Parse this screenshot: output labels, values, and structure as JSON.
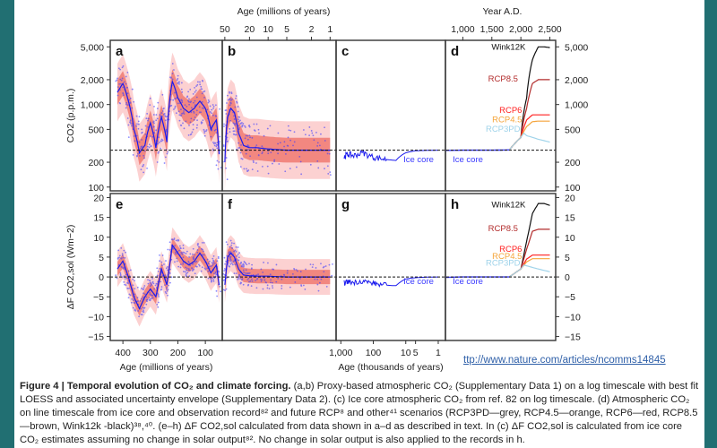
{
  "figure": {
    "top_axis_left_title": "Age (millions of years)",
    "top_axis_left_ticks": [
      "50",
      "20",
      "10",
      "5",
      "2",
      "1"
    ],
    "top_axis_right_title": "Year A.D.",
    "top_axis_right_ticks": [
      "1,000",
      "1,500",
      "2,000",
      "2,500"
    ],
    "bottom_axis_left_title": "Age (millions of years)",
    "bottom_axis_left_ticks": [
      "400",
      "300",
      "200",
      "100"
    ],
    "bottom_axis_mid_title": "Age (thousands of years)",
    "bottom_axis_mid_ticks": [
      "1,000",
      "100",
      "10",
      "5",
      "1"
    ],
    "top_ylabel": "CO2 (p.p.m.)",
    "bottom_ylabel": "ΔF CO2,sol (Wm−2)",
    "panel_labels": [
      "a",
      "b",
      "c",
      "d",
      "e",
      "f",
      "g",
      "h"
    ],
    "ice_core_label": "Ice core",
    "colors": {
      "proxy_points": "#3b3bff",
      "loess": "#1a1aee",
      "envelope_outer": "#fcc9c9",
      "envelope_inner": "#f07a72",
      "rcp3pd": "#9fd3ea",
      "rcp45": "#f5a43a",
      "rcp6": "#ff2020",
      "rcp85": "#b22b2b",
      "wink12k": "#111111"
    }
  },
  "chart_data": [
    {
      "type": "line",
      "panel": "a-d",
      "title": "Atmospheric CO2",
      "ylabel": "CO2 (p.p.m.)",
      "yscale": "log",
      "ylim": [
        90,
        6000
      ],
      "yticks": [
        100,
        200,
        500,
        1000,
        2000,
        5000
      ],
      "ytick_labels": [
        "100",
        "200",
        "500",
        "1,000",
        "2,000",
        "5,000"
      ],
      "reference_line": 280,
      "panels": {
        "a": {
          "xlabel": "Age (millions of years)",
          "x": [
            420,
            400,
            380,
            360,
            340,
            320,
            300,
            280,
            260,
            240,
            220,
            200,
            180,
            160,
            140,
            120,
            100,
            80,
            60,
            50
          ],
          "loess": [
            1400,
            1800,
            1100,
            500,
            260,
            320,
            600,
            300,
            700,
            350,
            1900,
            1200,
            900,
            800,
            900,
            1100,
            900,
            500,
            650,
            250
          ]
        },
        "b": {
          "xlabel": "Age (millions of years)",
          "x": [
            50,
            45,
            40,
            35,
            30,
            25,
            20,
            15,
            10,
            5,
            2,
            1
          ],
          "loess": [
            200,
            700,
            900,
            800,
            450,
            320,
            300,
            300,
            290,
            280,
            280,
            280
          ]
        },
        "c": {
          "xlabel": "Age (thousands of years)",
          "label": "Ice core",
          "x": [
            800,
            600,
            400,
            200,
            100,
            50,
            20,
            10,
            5,
            1
          ],
          "loess": [
            230,
            250,
            240,
            260,
            230,
            220,
            210,
            260,
            275,
            280
          ]
        },
        "d": {
          "xlabel": "Year A.D.",
          "xlim": [
            700,
            2600
          ],
          "series": [
            {
              "name": "Wink12K",
              "x": [
                1800,
                2000,
                2100,
                2200,
                2300,
                2400,
                2500
              ],
              "values": [
                280,
                400,
                1200,
                3500,
                5000,
                5000,
                4900
              ]
            },
            {
              "name": "RCP8.5",
              "x": [
                1800,
                2000,
                2100,
                2200,
                2300,
                2500
              ],
              "values": [
                280,
                400,
                900,
                1800,
                2000,
                2000
              ]
            },
            {
              "name": "RCP6",
              "x": [
                1800,
                2000,
                2100,
                2200,
                2300,
                2500
              ],
              "values": [
                280,
                400,
                650,
                750,
                750,
                750
              ]
            },
            {
              "name": "RCP4.5",
              "x": [
                1800,
                2000,
                2100,
                2200,
                2300,
                2500
              ],
              "values": [
                280,
                400,
                540,
                620,
                630,
                630
              ]
            },
            {
              "name": "RCP3PD",
              "x": [
                1800,
                2000,
                2050,
                2100,
                2300,
                2500
              ],
              "values": [
                280,
                400,
                450,
                420,
                380,
                350
              ]
            },
            {
              "name": "Ice core",
              "x": [
                700,
                1000,
                1500,
                1800
              ],
              "values": [
                278,
                280,
                280,
                282
              ]
            }
          ]
        }
      }
    },
    {
      "type": "line",
      "panel": "e-h",
      "title": "Climate forcing",
      "ylabel": "ΔF CO2,sol (Wm−2)",
      "ylim": [
        -16,
        21
      ],
      "yticks": [
        -15,
        -10,
        -5,
        0,
        5,
        10,
        15,
        20
      ],
      "ytick_labels": [
        "−15",
        "−10",
        "−5",
        "0",
        "5",
        "10",
        "15",
        "20"
      ],
      "reference_line": 0,
      "panels": {
        "e": {
          "xlabel": "Age (millions of years)",
          "x": [
            420,
            400,
            380,
            360,
            340,
            320,
            300,
            280,
            260,
            240,
            220,
            200,
            180,
            160,
            140,
            120,
            100,
            80,
            60,
            50
          ],
          "loess": [
            2,
            4,
            0,
            -5,
            -8,
            -5,
            -3,
            -5,
            2,
            -2,
            8,
            6,
            4,
            3,
            4,
            6,
            4,
            1,
            3,
            -2
          ]
        },
        "f": {
          "xlabel": "Age (millions of years)",
          "x": [
            50,
            45,
            40,
            35,
            30,
            25,
            20,
            15,
            10,
            5,
            2,
            1
          ],
          "loess": [
            -2,
            5,
            6,
            5,
            2,
            0.5,
            0.3,
            0.2,
            0.2,
            0,
            0,
            0
          ]
        },
        "g": {
          "xlabel": "Age (thousands of years)",
          "label": "Ice core",
          "x": [
            800,
            600,
            400,
            200,
            100,
            50,
            20,
            10,
            5,
            1
          ],
          "loess": [
            -1.5,
            -1.2,
            -1.4,
            -1.0,
            -1.6,
            -2.0,
            -2.2,
            -0.5,
            -0.2,
            0
          ]
        },
        "h": {
          "xlabel": "Year A.D.",
          "series": [
            {
              "name": "Wink12K",
              "x": [
                1800,
                2000,
                2100,
                2200,
                2300,
                2400,
                2500
              ],
              "values": [
                0,
                2,
                9,
                16,
                18.5,
                18.5,
                18
              ]
            },
            {
              "name": "RCP8.5",
              "x": [
                1800,
                2000,
                2100,
                2200,
                2300,
                2500
              ],
              "values": [
                0,
                2,
                7,
                11.5,
                12,
                12
              ]
            },
            {
              "name": "RCP6",
              "x": [
                1800,
                2000,
                2100,
                2200,
                2300,
                2500
              ],
              "values": [
                0,
                2,
                4.5,
                5.5,
                5.5,
                5.5
              ]
            },
            {
              "name": "RCP4.5",
              "x": [
                1800,
                2000,
                2100,
                2200,
                2300,
                2500
              ],
              "values": [
                0,
                2,
                3.8,
                4.6,
                4.6,
                4.6
              ]
            },
            {
              "name": "RCP3PD",
              "x": [
                1800,
                2000,
                2050,
                2100,
                2300,
                2500
              ],
              "values": [
                0,
                2,
                3,
                2.8,
                2,
                1.3
              ]
            },
            {
              "name": "Ice core",
              "x": [
                700,
                1000,
                1500,
                1800
              ],
              "values": [
                -0.1,
                0,
                0,
                0
              ]
            }
          ]
        }
      }
    }
  ],
  "link": "ttp://www.nature.com/articles/ncomms14845",
  "caption": {
    "figure_label": "Figure 4 | Temporal evolution of CO₂ and climate forcing.",
    "body": " (a,b) Proxy-based atmospheric CO₂ (Supplementary Data 1) on a log timescale with best fit LOESS and associated uncertainty envelope (Supplementary Data 2). (c) Ice core atmospheric CO₂ from ref. 82 on log timescale. (d) Atmospheric CO₂ on line timescale from ice core and observation record⁸² and future RCP⁸ and other⁴¹ scenarios (RCP3PD—grey, RCP4.5—orange, RCP6—red, RCP8.5—brown, Wink12k -black)³⁸,⁴⁰. (e–h) ΔF CO2,sol calculated from data shown in a–d as described in text. In (c) ΔF CO2,sol is calculated from ice core CO₂ estimates assuming no change in solar output⁸². No change in solar output is also applied to the records in h."
  }
}
